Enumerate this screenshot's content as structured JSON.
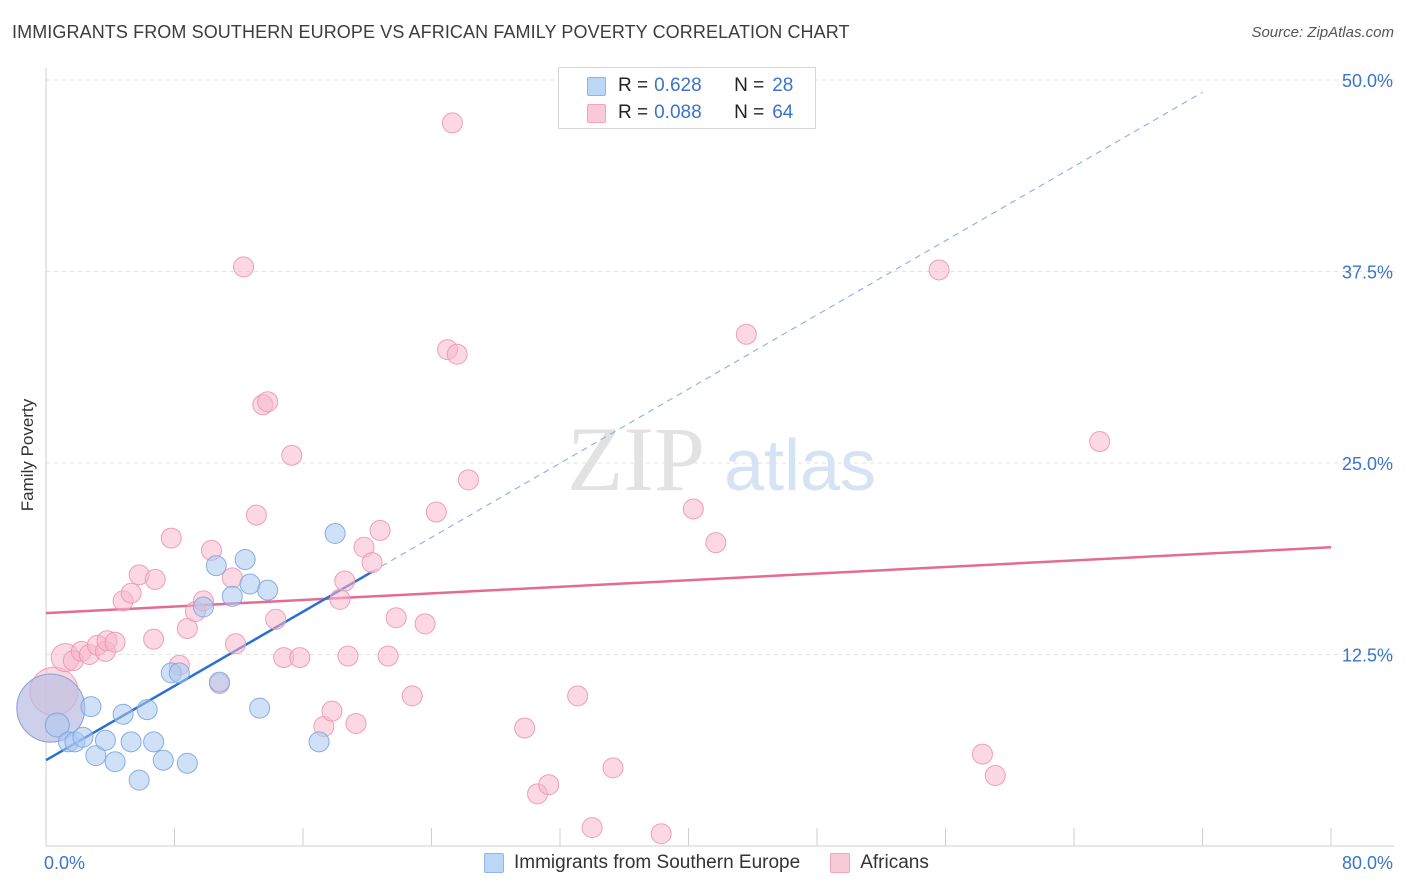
{
  "header": {
    "title": "IMMIGRANTS FROM SOUTHERN EUROPE VS AFRICAN FAMILY POVERTY CORRELATION CHART",
    "source": "Source: ZipAtlas.com"
  },
  "watermark": {
    "zip": "ZIP",
    "atlas": "atlas"
  },
  "legend_top": [
    {
      "r_label": "R = ",
      "r_value": "0.628",
      "n_label": "N = ",
      "n_value": "28",
      "color": "#a9c8f1"
    },
    {
      "r_label": "R = ",
      "r_value": "0.088",
      "n_label": "N = ",
      "n_value": "64",
      "color": "#f7b8cc"
    }
  ],
  "legend_bottom": [
    {
      "label": "Immigrants from Southern Europe",
      "color": "#a9c8f1"
    },
    {
      "label": "Africans",
      "color": "#f7b8cc"
    }
  ],
  "chart_data": {
    "type": "scatter",
    "ylabel": "Family Poverty",
    "xlim": [
      0,
      80
    ],
    "ylim": [
      0,
      50
    ],
    "x_tick_labels": [
      "0.0%",
      "80.0%"
    ],
    "y_tick_labels": [
      "12.5%",
      "25.0%",
      "37.5%",
      "50.0%"
    ],
    "y_ticks": [
      12.5,
      25.0,
      37.5,
      50.0
    ],
    "grid": true,
    "colors": {
      "blue": "#a9c8f1",
      "blue_line": "#2a6fd1",
      "pink": "#f7b8cc",
      "pink_line": "#e56b95",
      "tick_text": "#3b74c9"
    },
    "series": [
      {
        "name": "Immigrants from Southern Europe",
        "points": [
          [
            0.3,
            9.0
          ],
          [
            0.7,
            7.9
          ],
          [
            1.4,
            6.8
          ],
          [
            1.8,
            6.8
          ],
          [
            2.3,
            7.1
          ],
          [
            2.8,
            9.1
          ],
          [
            3.1,
            5.9
          ],
          [
            3.7,
            6.9
          ],
          [
            4.3,
            5.5
          ],
          [
            4.8,
            8.6
          ],
          [
            5.3,
            6.8
          ],
          [
            5.8,
            4.3
          ],
          [
            6.3,
            8.9
          ],
          [
            6.7,
            6.8
          ],
          [
            7.3,
            5.6
          ],
          [
            7.8,
            11.3
          ],
          [
            8.3,
            11.3
          ],
          [
            8.8,
            5.4
          ],
          [
            9.8,
            15.6
          ],
          [
            10.6,
            18.3
          ],
          [
            10.8,
            10.7
          ],
          [
            11.6,
            16.3
          ],
          [
            12.4,
            18.7
          ],
          [
            12.7,
            17.1
          ],
          [
            13.3,
            9.0
          ],
          [
            13.8,
            16.7
          ],
          [
            17.0,
            6.8
          ],
          [
            18.0,
            20.4
          ]
        ],
        "sizes": [
          34,
          12,
          10,
          10,
          10,
          10,
          10,
          10,
          10,
          10,
          10,
          10,
          10,
          10,
          10,
          10,
          10,
          10,
          10,
          10,
          10,
          10,
          10,
          10,
          10,
          10,
          10,
          10
        ],
        "trend": {
          "x": [
            0,
            20.3
          ],
          "y": [
            5.6,
            17.9
          ],
          "extended": {
            "x": [
              20.3,
              72.0
            ],
            "y": [
              17.9,
              49.2
            ]
          }
        }
      },
      {
        "name": "Africans",
        "points": [
          [
            0.3,
            9.0
          ],
          [
            0.5,
            10.1
          ],
          [
            1.2,
            12.3
          ],
          [
            1.7,
            12.1
          ],
          [
            2.2,
            12.7
          ],
          [
            2.7,
            12.5
          ],
          [
            3.2,
            13.1
          ],
          [
            3.7,
            12.7
          ],
          [
            3.8,
            13.4
          ],
          [
            4.3,
            13.3
          ],
          [
            4.8,
            16.0
          ],
          [
            5.3,
            16.5
          ],
          [
            5.8,
            17.7
          ],
          [
            6.8,
            17.4
          ],
          [
            6.7,
            13.5
          ],
          [
            7.8,
            20.1
          ],
          [
            8.3,
            11.8
          ],
          [
            8.8,
            14.2
          ],
          [
            9.3,
            15.3
          ],
          [
            9.8,
            16.0
          ],
          [
            10.3,
            19.3
          ],
          [
            10.8,
            10.6
          ],
          [
            11.6,
            17.5
          ],
          [
            11.8,
            13.2
          ],
          [
            12.3,
            37.8
          ],
          [
            13.1,
            21.6
          ],
          [
            13.5,
            28.8
          ],
          [
            13.8,
            29.0
          ],
          [
            14.3,
            14.8
          ],
          [
            14.8,
            12.3
          ],
          [
            15.3,
            25.5
          ],
          [
            15.8,
            12.3
          ],
          [
            17.3,
            7.8
          ],
          [
            17.8,
            8.8
          ],
          [
            18.3,
            16.1
          ],
          [
            18.6,
            17.3
          ],
          [
            18.8,
            12.4
          ],
          [
            19.3,
            8.0
          ],
          [
            19.8,
            19.5
          ],
          [
            20.3,
            18.5
          ],
          [
            20.8,
            20.6
          ],
          [
            21.3,
            12.4
          ],
          [
            21.8,
            14.9
          ],
          [
            22.8,
            9.8
          ],
          [
            23.6,
            14.5
          ],
          [
            24.3,
            21.8
          ],
          [
            25.0,
            32.4
          ],
          [
            25.3,
            47.2
          ],
          [
            25.6,
            32.1
          ],
          [
            26.3,
            23.9
          ],
          [
            29.8,
            7.7
          ],
          [
            30.6,
            3.4
          ],
          [
            31.3,
            4.0
          ],
          [
            33.1,
            9.8
          ],
          [
            34.0,
            1.2
          ],
          [
            35.3,
            5.1
          ],
          [
            38.3,
            0.8
          ],
          [
            40.3,
            22.0
          ],
          [
            41.7,
            19.8
          ],
          [
            43.6,
            33.4
          ],
          [
            55.6,
            37.6
          ],
          [
            58.3,
            6.0
          ],
          [
            59.1,
            4.6
          ],
          [
            65.6,
            26.4
          ]
        ],
        "sizes": [
          34,
          24,
          14,
          10,
          10,
          10,
          10,
          10,
          10,
          10,
          10,
          10,
          10,
          10,
          10,
          10,
          10,
          10,
          10,
          10,
          10,
          10,
          10,
          10,
          10,
          10,
          10,
          10,
          10,
          10,
          10,
          10,
          10,
          10,
          10,
          10,
          10,
          10,
          10,
          10,
          10,
          10,
          10,
          10,
          10,
          10,
          10,
          10,
          10,
          10,
          10,
          10,
          10,
          10,
          10,
          10,
          10,
          10,
          10,
          10,
          10,
          10,
          10,
          10
        ],
        "trend": {
          "x": [
            0,
            80
          ],
          "y": [
            15.2,
            19.5
          ]
        }
      }
    ]
  }
}
